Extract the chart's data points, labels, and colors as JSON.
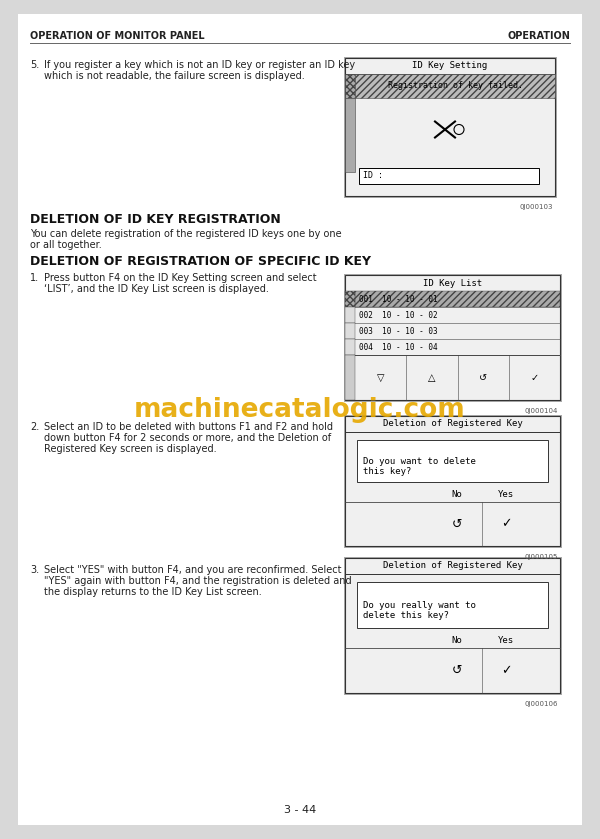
{
  "bg_color": "#ffffff",
  "page_bg": "#d8d8d8",
  "header_left": "OPERATION OF MONITOR PANEL",
  "header_right": "OPERATION",
  "footer_text": "3 - 44",
  "watermark": "machinecatalogic.com",
  "watermark_color": "#e6a800",
  "section1_title": "DELETION OF ID KEY REGISTRATION",
  "section1_body1": "You can delete registration of the registered ID keys one by one",
  "section1_body2": "or all together.",
  "section2_title": "DELETION OF REGISTRATION OF SPECIFIC ID KEY",
  "item5_line1": "If you register a key which is not an ID key or register an ID key",
  "item5_line2": "which is not readable, the failure screen is displayed.",
  "item1_line1": "Press button F4 on the ID Key Setting screen and select",
  "item1_line2": "‘LIST’, and the ID Key List screen is displayed.",
  "item2_line1": "Select an ID to be deleted with buttons F1 and F2 and hold",
  "item2_line2": "down button F4 for 2 seconds or more, and the Deletion of",
  "item2_line3": "Registered Key screen is displayed.",
  "item3_line1": "Select \"YES\" with button F4, and you are reconfirmed. Select",
  "item3_line2": "\"YES\" again with button F4, and the registration is deleted and",
  "item3_line3": "the display returns to the ID Key List screen.",
  "box1_title": "ID Key Setting",
  "box1_msg": "Registration of key failed.",
  "box1_id": "ID :",
  "box1_ref": "0J000103",
  "box2_title": "ID Key List",
  "box2_items": [
    "001  10 - 10 - 01",
    "002  10 - 10 - 02",
    "003  10 - 10 - 03",
    "004  10 - 10 - 04"
  ],
  "box2_ref": "0J000104",
  "box3_title": "Deletion of Registered Key",
  "box3_msg_line1": "Do you want to delete",
  "box3_msg_line2": "this key?",
  "box3_no": "No",
  "box3_yes": "Yes",
  "box3_ref": "0J000105",
  "box4_title": "Deletion of Registered Key",
  "box4_msg_line1": "Do you really want to",
  "box4_msg_line2": "delete this key?",
  "box4_no": "No",
  "box4_yes": "Yes",
  "box4_ref": "0J000106"
}
